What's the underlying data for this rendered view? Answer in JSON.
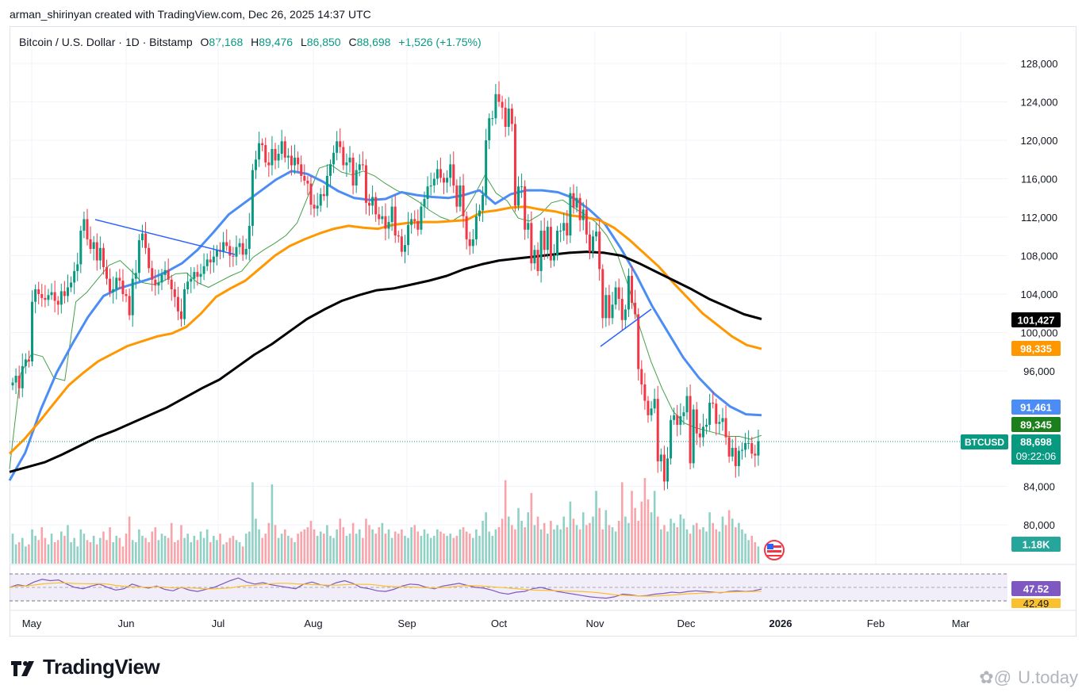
{
  "header": {
    "caption": "arman_shirinyan created with TradingView.com, Dec 26, 2025 14:37 UTC"
  },
  "legend": {
    "symbol": "Bitcoin / U.S. Dollar · 1D · Bitstamp",
    "o_label": "O",
    "o": "87,168",
    "h_label": "H",
    "h": "89,476",
    "l_label": "L",
    "l": "86,850",
    "c_label": "C",
    "c": "88,698",
    "change": "+1,526 (+1.75%)"
  },
  "colors": {
    "up": "#089981",
    "down": "#f23645",
    "ma_blue": "#4c8df5",
    "ma_orange": "#ff9800",
    "ma_black": "#000000",
    "ma_green": "#43a047",
    "rsi": "#7e57c2",
    "rsi_ma": "#fbc02d"
  },
  "chart_data": {
    "type": "candlestick",
    "symbol": "BTCUSD",
    "ylim": [
      77000,
      131000
    ],
    "ticks": [
      80000,
      84000,
      96000,
      100000,
      104000,
      108000,
      112000,
      116000,
      120000,
      124000,
      128000
    ],
    "tick_labels": [
      "80,000",
      "84,000",
      "96,000",
      "100,000",
      "104,000",
      "108,000",
      "112,000",
      "116,000",
      "120,000",
      "124,000",
      "128,000"
    ],
    "x_labels": [
      "May",
      "Jun",
      "Jul",
      "Aug",
      "Sep",
      "Oct",
      "Nov",
      "Dec",
      "2026",
      "Feb",
      "Mar"
    ],
    "closes": [
      94800,
      95500,
      94200,
      96500,
      97200,
      97000,
      103200,
      104500,
      104000,
      103600,
      103400,
      103900,
      104200,
      103300,
      102900,
      104300,
      103800,
      104700,
      105200,
      106400,
      107100,
      110600,
      111800,
      109700,
      108700,
      109400,
      107500,
      108800,
      106800,
      105600,
      104200,
      104500,
      105700,
      105400,
      104000,
      103800,
      101800,
      105600,
      106200,
      109600,
      110300,
      108800,
      106700,
      105500,
      104900,
      105200,
      106000,
      106500,
      105500,
      104500,
      103700,
      102200,
      101400,
      104500,
      105300,
      105600,
      106300,
      105800,
      106100,
      106900,
      107600,
      107300,
      107900,
      108600,
      108400,
      109400,
      109000,
      108000,
      107900,
      108900,
      109300,
      108100,
      108700,
      111100,
      116900,
      118000,
      119700,
      119500,
      117700,
      117400,
      119100,
      117900,
      118600,
      119900,
      118200,
      118400,
      117400,
      118200,
      117500,
      116300,
      115800,
      115500,
      113300,
      112900,
      113200,
      114400,
      114200,
      116300,
      117500,
      118700,
      119900,
      119300,
      117400,
      117700,
      118200,
      115300,
      116900,
      117500,
      117400,
      113500,
      113200,
      114100,
      112300,
      111800,
      112100,
      110800,
      111500,
      113100,
      110100,
      110000,
      108400,
      109100,
      111200,
      111800,
      111600,
      110700,
      113100,
      113900,
      115200,
      115300,
      116000,
      117000,
      116100,
      115600,
      116100,
      117500,
      115300,
      113100,
      115300,
      112100,
      109700,
      109000,
      109700,
      112100,
      112700,
      114300,
      120000,
      122300,
      122300,
      124800,
      124000,
      123400,
      121400,
      123300,
      121700,
      113200,
      115200,
      115200,
      110700,
      111400,
      107200,
      108600,
      106400,
      110600,
      108600,
      111000,
      107500,
      108000,
      110600,
      110600,
      111400,
      110100,
      114500,
      113000,
      114000,
      111700,
      112800,
      110200,
      108400,
      110000,
      110500,
      106600,
      101500,
      103900,
      101500,
      102900,
      104700,
      103500,
      101300,
      102400,
      105900,
      103100,
      101900,
      96200,
      94600,
      92900,
      91400,
      92100,
      93100,
      86600,
      87300,
      84500,
      86900,
      90900,
      91400,
      90400,
      91300,
      91700,
      93400,
      86400,
      92000,
      89500,
      89100,
      90200,
      90400,
      92700,
      92600,
      90500,
      90700,
      91100,
      89100,
      87100,
      88000,
      86100,
      87700,
      87800,
      88500,
      88500,
      87400,
      87200,
      88700
    ],
    "series": [
      {
        "name": "MA 20",
        "values": [
          85800,
          95700,
          97800,
          97500,
          95300,
          95000,
          103200,
          104200,
          105600,
          107000,
          107500,
          106400,
          105200,
          105000,
          105400,
          106100,
          106200,
          105200,
          104700,
          105300,
          105900,
          106400,
          107800,
          108600,
          109300,
          110100,
          111400,
          114200,
          117100,
          117500,
          116700,
          116400,
          116800,
          116300,
          115500,
          114800,
          114300,
          113600,
          112700,
          112000,
          111600,
          112300,
          114200,
          116400,
          114500,
          113700,
          111900,
          111600,
          112300,
          113500,
          113800,
          113000,
          112300,
          111500,
          110100,
          108000,
          104700,
          100500,
          97000,
          94200,
          91800,
          90600,
          90100,
          89800,
          89500,
          89200,
          89200,
          88900,
          89300
        ]
      },
      {
        "name": "MA 50",
        "values": [
          84600,
          87500,
          92000,
          95800,
          98800,
          101600,
          103800,
          104600,
          105100,
          105600,
          106300,
          107200,
          108600,
          110400,
          112300,
          113500,
          114700,
          115900,
          116800,
          116500,
          115700,
          114700,
          114000,
          113800,
          113900,
          114600,
          114300,
          114100,
          114000,
          114300,
          114800,
          113400,
          114400,
          114800,
          114800,
          114600,
          114000,
          112800,
          111300,
          108800,
          106000,
          102800,
          100100,
          97400,
          95300,
          93600,
          92300,
          91500,
          91400
        ]
      },
      {
        "name": "MA 100",
        "values": [
          87400,
          88900,
          90700,
          92600,
          94500,
          95800,
          97000,
          97800,
          98600,
          99100,
          99600,
          99900,
          100600,
          102000,
          103700,
          104600,
          105400,
          106700,
          108000,
          109000,
          109700,
          110300,
          110800,
          111100,
          110900,
          110800,
          111200,
          111400,
          111500,
          111500,
          111600,
          111700,
          112500,
          112700,
          113000,
          113100,
          112800,
          112600,
          112200,
          112000,
          111700,
          110900,
          109700,
          108300,
          106900,
          105200,
          103600,
          102000,
          100800,
          99600,
          98700,
          98300
        ]
      },
      {
        "name": "MA 200",
        "values": [
          85500,
          86000,
          86500,
          87300,
          88200,
          89100,
          89800,
          90600,
          91400,
          92200,
          93200,
          94200,
          95100,
          96400,
          97700,
          98800,
          100100,
          101400,
          102400,
          103300,
          103900,
          104400,
          104600,
          105000,
          105400,
          105900,
          106600,
          107100,
          107500,
          107700,
          107900,
          108100,
          108300,
          108400,
          108300,
          108000,
          107200,
          106300,
          105400,
          104500,
          103500,
          102700,
          101900,
          101400
        ]
      }
    ],
    "ma_labels": {
      "black": "101,427",
      "orange": "98,335",
      "blue": "91,461",
      "green": "89,345"
    },
    "price_label": {
      "symbol": "BTCUSD",
      "price": "88,698",
      "countdown": "09:22:06"
    },
    "volume_label": "1.18K",
    "rsi": {
      "value_label": "47.52",
      "ma_label": "42.49"
    },
    "volumes": [
      1.4,
      0.9,
      1.0,
      1.2,
      0.8,
      0.9,
      1.6,
      1.3,
      1.1,
      1.7,
      1.2,
      0.9,
      1.4,
      1.0,
      1.1,
      1.5,
      1.3,
      1.8,
      1.0,
      1.2,
      0.8,
      1.6,
      1.4,
      1.1,
      1.0,
      1.3,
      0.9,
      1.2,
      1.5,
      1.1,
      1.7,
      1.0,
      1.3,
      1.2,
      0.8,
      1.4,
      2.2,
      1.1,
      1.0,
      1.6,
      1.3,
      1.2,
      1.0,
      1.5,
      1.7,
      1.1,
      1.4,
      1.3,
      1.2,
      1.9,
      1.0,
      1.1,
      1.8,
      1.2,
      1.4,
      1.0,
      1.3,
      1.1,
      1.5,
      1.2,
      1.6,
      1.0,
      1.3,
      1.1,
      1.4,
      0.9,
      1.0,
      1.2,
      1.3,
      1.1,
      1.0,
      0.8,
      1.4,
      1.5,
      3.8,
      2.1,
      1.6,
      1.2,
      1.4,
      1.9,
      3.7,
      1.8,
      1.2,
      1.4,
      1.6,
      1.3,
      1.2,
      1.0,
      1.4,
      1.5,
      1.6,
      1.7,
      2.0,
      1.6,
      1.3,
      1.5,
      1.4,
      1.8,
      1.3,
      1.2,
      1.6,
      2.1,
      1.7,
      1.3,
      1.4,
      1.9,
      1.4,
      1.6,
      1.2,
      2.1,
      1.8,
      1.6,
      1.4,
      1.7,
      1.9,
      1.4,
      1.6,
      1.2,
      1.5,
      1.4,
      1.6,
      1.3,
      1.2,
      1.7,
      1.8,
      1.5,
      1.3,
      1.6,
      1.4,
      1.2,
      1.3,
      1.6,
      1.5,
      1.4,
      1.3,
      1.4,
      1.2,
      1.3,
      1.6,
      1.7,
      1.5,
      1.4,
      1.2,
      1.6,
      1.3,
      2.0,
      2.4,
      1.5,
      1.3,
      1.6,
      1.7,
      2.1,
      3.9,
      2.2,
      1.8,
      1.6,
      2.6,
      2.0,
      1.7,
      2.4,
      3.3,
      1.8,
      2.2,
      1.6,
      1.9,
      1.4,
      2.0,
      1.6,
      1.8,
      1.6,
      2.2,
      1.7,
      2.9,
      2.1,
      1.8,
      1.6,
      2.4,
      1.8,
      1.9,
      2.2,
      3.4,
      2.6,
      1.6,
      2.5,
      1.8,
      1.7,
      1.5,
      2.0,
      3.8,
      2.2,
      1.9,
      3.4,
      2.6,
      2.0,
      2.9,
      4.0,
      3.0,
      2.4,
      3.4,
      2.2,
      1.6,
      1.8,
      1.5,
      2.1,
      1.9,
      1.7,
      2.3,
      2.1,
      1.6,
      1.4,
      1.8,
      1.9,
      1.6,
      1.7,
      1.5,
      2.4,
      1.9,
      1.6,
      1.5,
      2.2,
      1.8,
      2.5,
      2.1,
      1.7,
      1.9,
      1.6,
      1.4,
      1.1,
      1.3,
      1.0,
      0.8
    ],
    "rsi_values": [
      50,
      54,
      52,
      58,
      62,
      60,
      61,
      55,
      50,
      48,
      52,
      55,
      50,
      46,
      48,
      55,
      51,
      49,
      52,
      47,
      45,
      50,
      46,
      44,
      47,
      50,
      55,
      60,
      64,
      58,
      55,
      57,
      54,
      52,
      50,
      48,
      55,
      58,
      54,
      52,
      57,
      60,
      56,
      50,
      48,
      45,
      44,
      47,
      52,
      55,
      54,
      50,
      48,
      52,
      54,
      56,
      53,
      50,
      49,
      46,
      42,
      40,
      43,
      44,
      48,
      50,
      47,
      44,
      42,
      40,
      38,
      36,
      35,
      34,
      36,
      40,
      39,
      37,
      38,
      40,
      41,
      43,
      42,
      44,
      45,
      44,
      43,
      42,
      44,
      45,
      44,
      45,
      47.5
    ]
  }
}
